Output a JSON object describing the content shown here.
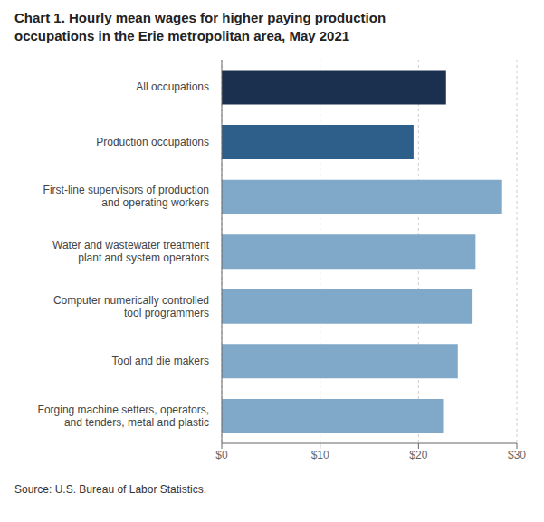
{
  "chart_data": {
    "type": "bar",
    "orientation": "horizontal",
    "title": "Chart 1. Hourly mean wages for higher paying production\noccupations in the Erie metropolitan area, May 2021",
    "categories": [
      "Forging machine setters, operators,\nand tenders, metal and plastic",
      "Tool and die makers",
      "Computer numerically controlled\ntool programmers",
      "Water and wastewater treatment\nplant and system operators",
      "First-line supervisors of production\nand operating workers",
      "Production occupations",
      "All occupations"
    ],
    "values": [
      22.5,
      24.0,
      25.5,
      25.8,
      28.5,
      19.5,
      22.8
    ],
    "colors": [
      "#7fa8c9",
      "#7fa8c9",
      "#7fa8c9",
      "#7fa8c9",
      "#7fa8c9",
      "#2e5f8a",
      "#1b2f4e"
    ],
    "xlim": [
      0,
      30
    ],
    "xticks": [
      {
        "value": 0,
        "label": "$0"
      },
      {
        "value": 10,
        "label": "$10"
      },
      {
        "value": 20,
        "label": "$20"
      },
      {
        "value": 30,
        "label": "$30"
      }
    ],
    "grid": "x",
    "annotations": [
      "Source: U.S. Bureau of Labor Statistics."
    ]
  }
}
